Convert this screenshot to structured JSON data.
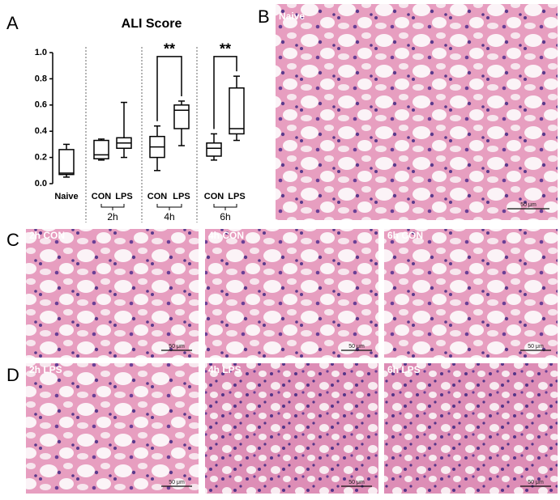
{
  "chart_data": {
    "type": "box",
    "panel_label": "A",
    "title": "ALI Score",
    "categories": [
      "Naive",
      "CON",
      "LPS",
      "CON",
      "LPS",
      "CON",
      "LPS"
    ],
    "groups": [
      "2h",
      "4h",
      "6h"
    ],
    "boxes": [
      {
        "min": 0.05,
        "q1": 0.07,
        "median": 0.08,
        "q3": 0.26,
        "max": 0.3
      },
      {
        "min": 0.18,
        "q1": 0.19,
        "median": 0.22,
        "q3": 0.33,
        "max": 0.34
      },
      {
        "min": 0.2,
        "q1": 0.27,
        "median": 0.31,
        "q3": 0.35,
        "max": 0.62
      },
      {
        "min": 0.1,
        "q1": 0.2,
        "median": 0.28,
        "q3": 0.36,
        "max": 0.44
      },
      {
        "min": 0.29,
        "q1": 0.42,
        "median": 0.56,
        "q3": 0.6,
        "max": 0.63
      },
      {
        "min": 0.18,
        "q1": 0.21,
        "median": 0.27,
        "q3": 0.31,
        "max": 0.38
      },
      {
        "min": 0.33,
        "q1": 0.38,
        "median": 0.42,
        "q3": 0.73,
        "max": 0.82
      }
    ],
    "color": "#000000",
    "ylim": [
      0,
      1
    ],
    "yticks": [
      {
        "value": 0,
        "label": "0.0"
      },
      0.2,
      0.4,
      0.6,
      0.8,
      {
        "value": 1,
        "label": "1.0"
      }
    ],
    "annotations": [
      "**",
      "**"
    ]
  },
  "panels": [
    {
      "letter": "B",
      "images": [
        {
          "label": "Naive",
          "scale": "50 μm"
        }
      ]
    },
    {
      "letter": "C",
      "images": [
        {
          "label": "2h CON",
          "scale": "50 μm"
        },
        {
          "label": "4h CON",
          "scale": "50 μm"
        },
        {
          "label": "6h CON",
          "scale": "50 μm"
        }
      ]
    },
    {
      "letter": "D",
      "images": [
        {
          "label": "2h LPS",
          "scale": "50 μm"
        },
        {
          "label": "4h LPS",
          "scale": "50 μm"
        },
        {
          "label": "6h LPS",
          "scale": "50 μm"
        }
      ]
    }
  ]
}
